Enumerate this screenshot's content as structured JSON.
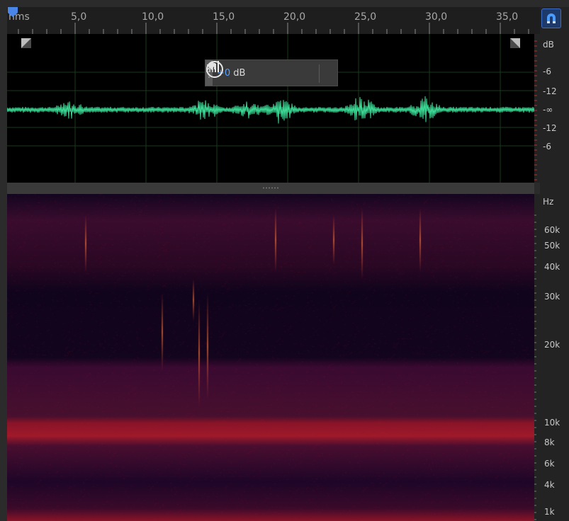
{
  "ruler": {
    "unit_label": "hms",
    "time_ticks": [
      "5,0",
      "10,0",
      "15,0",
      "20,0",
      "25,0",
      "30,0",
      "35,0"
    ],
    "snap_icon": "magnet-icon",
    "playhead_icon": "playhead-marker-icon"
  },
  "waveform": {
    "fade_in_icon": "fade-in-handle-icon",
    "fade_out_icon": "fade-out-handle-icon",
    "waveform_color": "#3ddc97"
  },
  "hud": {
    "meter_icon": "level-meter-icon",
    "knob_icon": "gain-knob-icon",
    "gain_value": "+0",
    "gain_unit": " dB",
    "pin_icon": "pin-icon"
  },
  "db_scale": {
    "unit": "dB",
    "labels": [
      "-6",
      "-12",
      "-∞",
      "-12",
      "-6"
    ]
  },
  "hz_scale": {
    "unit": "Hz",
    "labels": [
      "60k",
      "50k",
      "40k",
      "30k",
      "20k",
      "10k",
      "8k",
      "6k",
      "4k",
      "1k"
    ]
  },
  "colors": {
    "accent": "#3d6ec4",
    "spectral_hot": "#e0332a",
    "spectral_base": "#0d0418"
  }
}
